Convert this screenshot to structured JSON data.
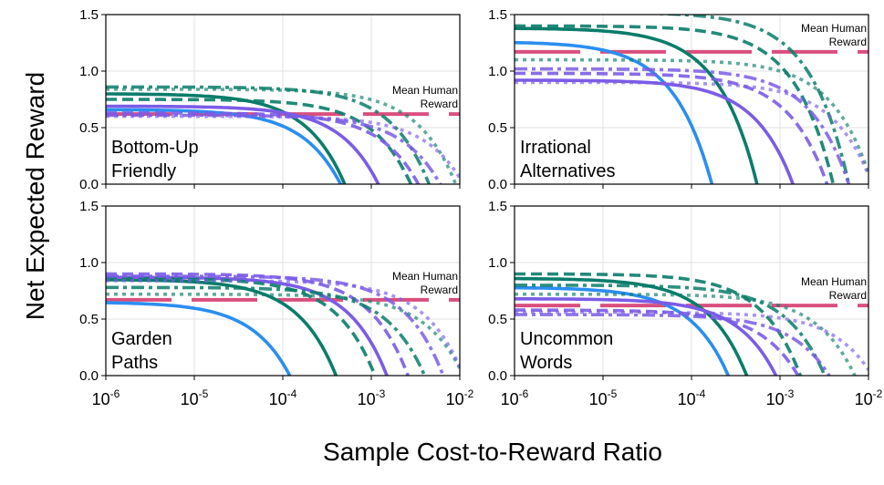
{
  "chart_data": {
    "type": "line",
    "ylabel": "Net Expected Reward",
    "xlabel": "Sample Cost-to-Reward Ratio",
    "xscale": "log",
    "xlim": [
      1e-06,
      0.01
    ],
    "ylim": [
      0,
      1.5
    ],
    "yticks": [
      "0.0",
      "0.5",
      "1.0",
      "1.5"
    ],
    "xticks": [
      {
        "base": "10",
        "exp": "-6"
      },
      {
        "base": "10",
        "exp": "-5"
      },
      {
        "base": "10",
        "exp": "-4"
      },
      {
        "base": "10",
        "exp": "-3"
      },
      {
        "base": "10",
        "exp": "-2"
      }
    ],
    "colors": {
      "blue": "#2b8ef0",
      "green": "#0b7c6a",
      "purple": "#7b5ce6",
      "mean_human": "#d94f7e",
      "grid": "#e2e2e2"
    },
    "reference": {
      "label_line1": "Mean Human",
      "label_line2": "Reward"
    },
    "panels": [
      {
        "label_line1": "Bottom-Up",
        "label_line2": "Friendly",
        "mean_human": 0.62,
        "series": [
          {
            "color": "blue",
            "style": "solid",
            "y0": 0.66,
            "zero_at": 0.00045
          },
          {
            "color": "green",
            "style": "solid",
            "y0": 0.8,
            "zero_at": 0.0005
          },
          {
            "color": "purple",
            "style": "solid",
            "y0": 0.69,
            "zero_at": 0.0012
          },
          {
            "color": "green",
            "style": "dash",
            "y0": 0.75,
            "zero_at": 0.0028
          },
          {
            "color": "purple",
            "style": "dash",
            "y0": 0.63,
            "zero_at": 0.0034
          },
          {
            "color": "green",
            "style": "dashdot",
            "y0": 0.86,
            "zero_at": 0.0045
          },
          {
            "color": "purple",
            "style": "dashdot",
            "y0": 0.61,
            "zero_at": 0.006
          },
          {
            "color": "green",
            "style": "dot",
            "y0": 0.84,
            "zero_at": 0.009
          },
          {
            "color": "purple",
            "style": "dot",
            "y0": 0.6,
            "zero_at": 0.011
          }
        ]
      },
      {
        "label_line1": "Irrational",
        "label_line2": "Alternatives",
        "mean_human": 1.17,
        "series": [
          {
            "color": "blue",
            "style": "solid",
            "y0": 1.26,
            "zero_at": 0.00017
          },
          {
            "color": "green",
            "style": "solid",
            "y0": 1.38,
            "zero_at": 0.00055
          },
          {
            "color": "purple",
            "style": "solid",
            "y0": 0.92,
            "zero_at": 0.0014
          },
          {
            "color": "green",
            "style": "dash",
            "y0": 1.4,
            "zero_at": 0.004
          },
          {
            "color": "purple",
            "style": "dash",
            "y0": 0.98,
            "zero_at": 0.0034
          },
          {
            "color": "green",
            "style": "dashdot",
            "y0": 1.52,
            "zero_at": 0.006
          },
          {
            "color": "purple",
            "style": "dashdot",
            "y0": 1.02,
            "zero_at": 0.006
          },
          {
            "color": "green",
            "style": "dot",
            "y0": 1.1,
            "zero_at": 0.011
          },
          {
            "color": "purple",
            "style": "dot",
            "y0": 0.9,
            "zero_at": 0.011
          }
        ]
      },
      {
        "label_line1": "Garden",
        "label_line2": "Paths",
        "mean_human": 0.67,
        "series": [
          {
            "color": "blue",
            "style": "solid",
            "y0": 0.65,
            "zero_at": 0.00012
          },
          {
            "color": "green",
            "style": "solid",
            "y0": 0.85,
            "zero_at": 0.0004
          },
          {
            "color": "purple",
            "style": "solid",
            "y0": 0.87,
            "zero_at": 0.0015
          },
          {
            "color": "green",
            "style": "dash",
            "y0": 0.86,
            "zero_at": 0.0011
          },
          {
            "color": "purple",
            "style": "dash",
            "y0": 0.9,
            "zero_at": 0.0026
          },
          {
            "color": "green",
            "style": "dashdot",
            "y0": 0.78,
            "zero_at": 0.004
          },
          {
            "color": "purple",
            "style": "dashdot",
            "y0": 0.88,
            "zero_at": 0.0065
          },
          {
            "color": "green",
            "style": "dot",
            "y0": 0.72,
            "zero_at": 0.011
          },
          {
            "color": "purple",
            "style": "dot",
            "y0": 0.84,
            "zero_at": 0.011
          }
        ]
      },
      {
        "label_line1": "Uncommon",
        "label_line2": "Words",
        "mean_human": 0.62,
        "series": [
          {
            "color": "blue",
            "style": "solid",
            "y0": 0.78,
            "zero_at": 0.00026
          },
          {
            "color": "green",
            "style": "solid",
            "y0": 0.86,
            "zero_at": 0.00042
          },
          {
            "color": "purple",
            "style": "solid",
            "y0": 0.68,
            "zero_at": 0.0009
          },
          {
            "color": "green",
            "style": "dash",
            "y0": 0.9,
            "zero_at": 0.0017
          },
          {
            "color": "purple",
            "style": "dash",
            "y0": 0.58,
            "zero_at": 0.0016
          },
          {
            "color": "green",
            "style": "dashdot",
            "y0": 0.8,
            "zero_at": 0.0032
          },
          {
            "color": "purple",
            "style": "dashdot",
            "y0": 0.54,
            "zero_at": 0.0036
          },
          {
            "color": "green",
            "style": "dot",
            "y0": 0.72,
            "zero_at": 0.007
          },
          {
            "color": "purple",
            "style": "dot",
            "y0": 0.56,
            "zero_at": 0.011
          }
        ]
      }
    ]
  }
}
